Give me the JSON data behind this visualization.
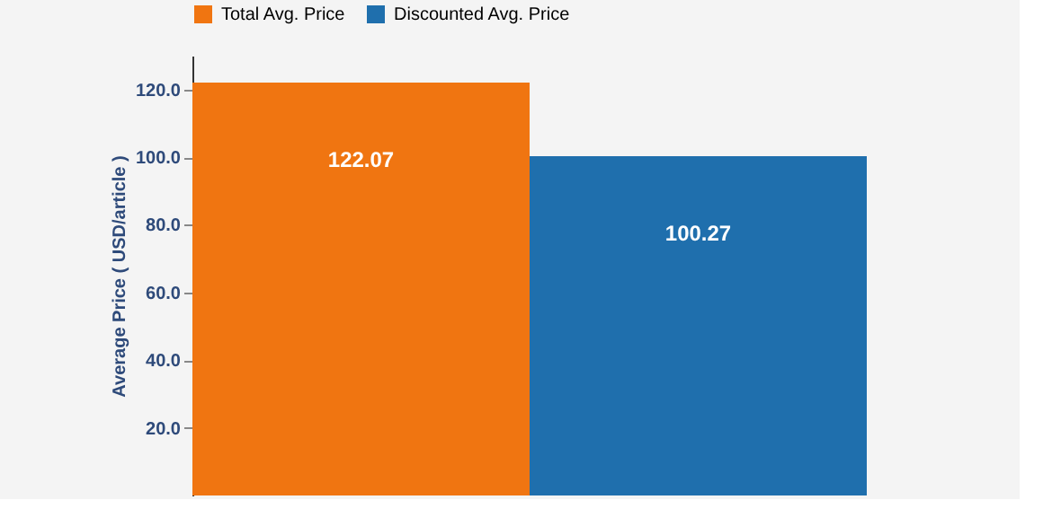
{
  "chart_data": {
    "type": "bar",
    "ylabel": "Average Price ( USD/article )",
    "categories": [
      null
    ],
    "series": [
      {
        "name": "Total Avg. Price",
        "color": "#f07511",
        "values": [
          122.07
        ]
      },
      {
        "name": "Discounted Avg. Price",
        "color": "#1f6fad",
        "values": [
          100.27
        ]
      }
    ],
    "ylim": [
      0,
      130
    ],
    "yticks": [
      {
        "value": 20,
        "label": "20.0"
      },
      {
        "value": 40,
        "label": "40.0"
      },
      {
        "value": 60,
        "label": "60.0"
      },
      {
        "value": 80,
        "label": "80.0"
      },
      {
        "value": 100,
        "label": "100.0"
      },
      {
        "value": 120,
        "label": "120.0"
      }
    ],
    "data_labels": true,
    "legend": "top",
    "grid": false
  }
}
